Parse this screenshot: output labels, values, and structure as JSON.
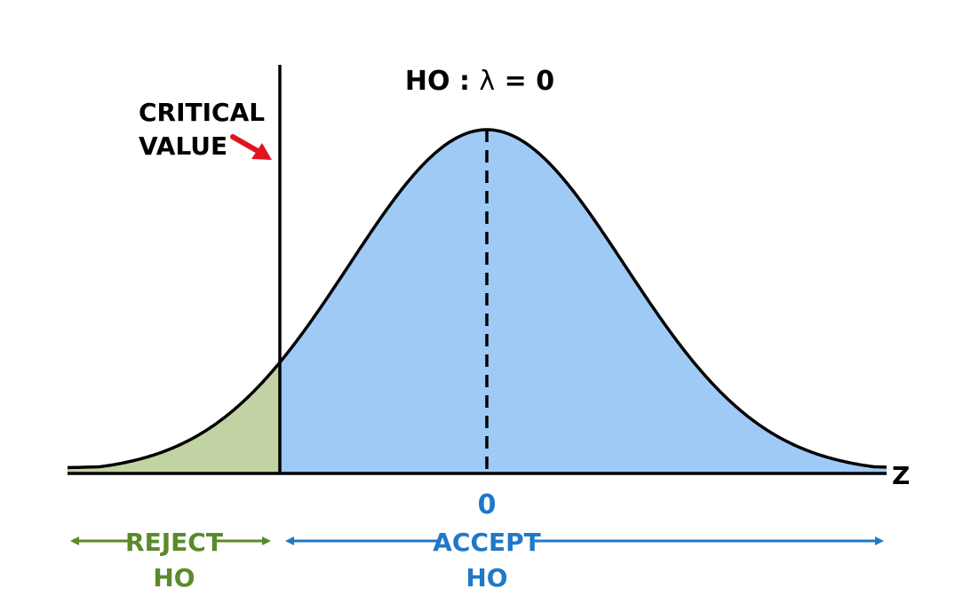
{
  "hypothesis": {
    "h0_prefix": "HO : ",
    "lambda_symbol": "λ",
    "h0_suffix": " = 0"
  },
  "critical_value": {
    "line1": "CRITICAL",
    "line2": "VALUE"
  },
  "axis": {
    "variable_label": "Z",
    "center_tick_label": "0"
  },
  "regions": {
    "reject": {
      "line1": "REJECT",
      "line2": "HO",
      "color": "#5a8a2a",
      "fill": "#c2d3a3"
    },
    "accept": {
      "line1": "ACCEPT",
      "line2": "HO",
      "color": "#1f78c8",
      "fill": "#9fcaf6"
    }
  },
  "colors": {
    "curve": "#000000",
    "critical_arrow": "#e0141e"
  }
}
